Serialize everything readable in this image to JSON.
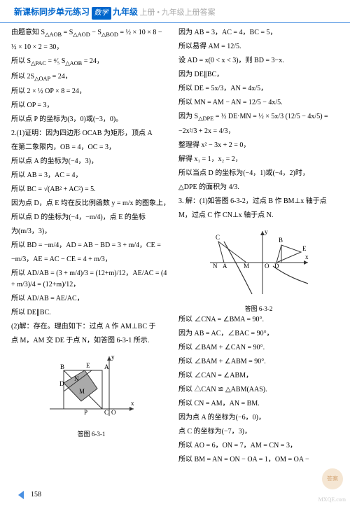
{
  "header": {
    "title": "新课标同步单元练习",
    "subj": "数学",
    "grade": "九年级",
    "vol": "上册 •",
    "faint": "九年级上册答案"
  },
  "left": [
    "由题意知 S<sub>△AOB</sub> = S<sub>△AOD</sub> − S<sub>△BOD</sub> = ½ × 10 × 8 −",
    "½ × 10 × 2 = 30，",
    "所以 S<sub>△PAC</sub> = ⁴⁄₅ S<sub>△AOB</sub> = 24，",
    "所以 2S<sub>△OAP</sub> = 24，",
    "所以 2 × ½ OP × 8 = 24，",
    "所以 OP = 3，",
    "所以点 P 的坐标为(3，0)或(−3，0)。",
    "2.(1)证明：因为四边形 OCAB 为矩形，顶点 A",
    "在第二象限内，OB = 4，OC = 3，",
    "所以点 A 的坐标为(−4，3)，",
    "所以 AB = 3，AC = 4，",
    "所以 BC = √(AB² + AC²) = 5.",
    "因为点 D，点 E 均在反比例函数 y = m/x 的图象上，",
    "所以点 D 的坐标为(−4，−m/4)，点 E 的坐标",
    "为(m/3，3)，",
    "所以 BD = −m/4，AD = AB − BD = 3 + m/4，CE =",
    "−m/3，AE = AC − CE = 4 + m/3，",
    "所以 AD/AB = (3 + m/4)/3 = (12+m)/12，AE/AC = (4 + m/3)/4 = (12+m)/12，",
    "所以 AD/AB = AE/AC，",
    "所以 DE∥BC.",
    "(2)解：存在。理由如下：过点 A 作 AM⊥BC 于",
    "点 M，AM 交 DE 于点 N，如答图 6-3-1 所示."
  ],
  "right": [
    "因为 AB = 3，AC = 4，BC = 5，",
    "所以易得 AM = 12/5.",
    "设 AD = x(0 < x < 3)，则 BD = 3−x.",
    "因为 DE∥BC，",
    "所以 DE = 5x/3，AN = 4x/5，",
    "所以 MN = AM − AN = 12/5 − 4x/5.",
    "因为 S<sub>△DPE</sub> = ½ DE·MN = ½ × 5x/3 (12/5 − 4x/5) =",
    "−2x²/3 + 2x = 4/3，",
    "整理得 x² − 3x + 2 = 0，",
    "解得 x₁ = 1，x₂ = 2，",
    "所以当点 D 的坐标为(−4，1)或(−4，2)时，",
    "△DPE 的面积为 4/3.",
    "3. 解：(1)如答图 6-3-2，过点 B 作 BM⊥x 轴于点",
    "M，过点 C 作 CN⊥x 轴于点 N."
  ],
  "rightB": [
    "所以 ∠CNA = ∠BMA = 90°.",
    "因为 AB = AC，∠BAC = 90°，",
    "所以 ∠BAM + ∠CAN = 90°.",
    "所以 ∠BAM + ∠ABM = 90°.",
    "所以 ∠CAN = ∠ABM，",
    "所以 △CAN ≌ △ABM(AAS).",
    "所以 CN = AM，AN = BM.",
    "因为点 A 的坐标为(−6，0)，",
    "点 C 的坐标为(−7，3)，",
    "所以 AO = 6，ON = 7，AM = CN = 3，",
    "所以 BM = AN = ON − OA = 1，OM = OA −"
  ],
  "fig1": {
    "cap": "答图 6-3-1",
    "labels": [
      "B",
      "A",
      "E",
      "D",
      "M",
      "N",
      "C",
      "P",
      "O",
      "y",
      "x"
    ]
  },
  "fig2": {
    "cap": "答图 6-3-2",
    "labels": [
      "C",
      "B",
      "E",
      "N",
      "A",
      "M",
      "O",
      "D",
      "y",
      "x"
    ]
  },
  "page": "158",
  "wm": "MXQE.com",
  "wm2": "答案"
}
